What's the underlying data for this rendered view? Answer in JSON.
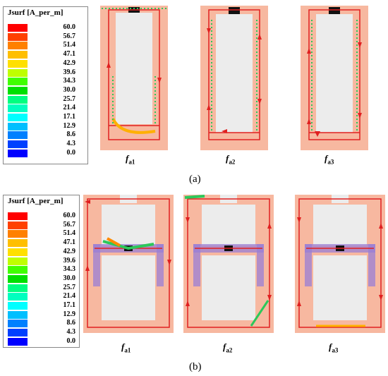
{
  "legend": {
    "title": "Jsurf [A_per_m]",
    "labels": [
      "60.0",
      "56.7",
      "51.4",
      "47.1",
      "42.9",
      "39.6",
      "34.3",
      "30.0",
      "25.7",
      "21.4",
      "17.1",
      "12.9",
      "8.6",
      "4.3",
      "0.0"
    ],
    "colors": [
      "#ff0000",
      "#ff4000",
      "#ff8000",
      "#ffbf00",
      "#ffe000",
      "#bfff00",
      "#40ff00",
      "#00e000",
      "#00ff80",
      "#00ffbf",
      "#00ffff",
      "#00bfff",
      "#0080ff",
      "#0040ff",
      "#0000ff"
    ]
  },
  "captions": {
    "a1": "f",
    "a1sub": "a1",
    "a2": "f",
    "a2sub": "a2",
    "a3": "f",
    "a3sub": "a3",
    "b1": "f",
    "b1sub": "a1",
    "b2": "f",
    "b2sub": "a2",
    "b3": "f",
    "b3sub": "a3"
  },
  "sublabels": {
    "a": "(a)",
    "b": "(b)"
  }
}
